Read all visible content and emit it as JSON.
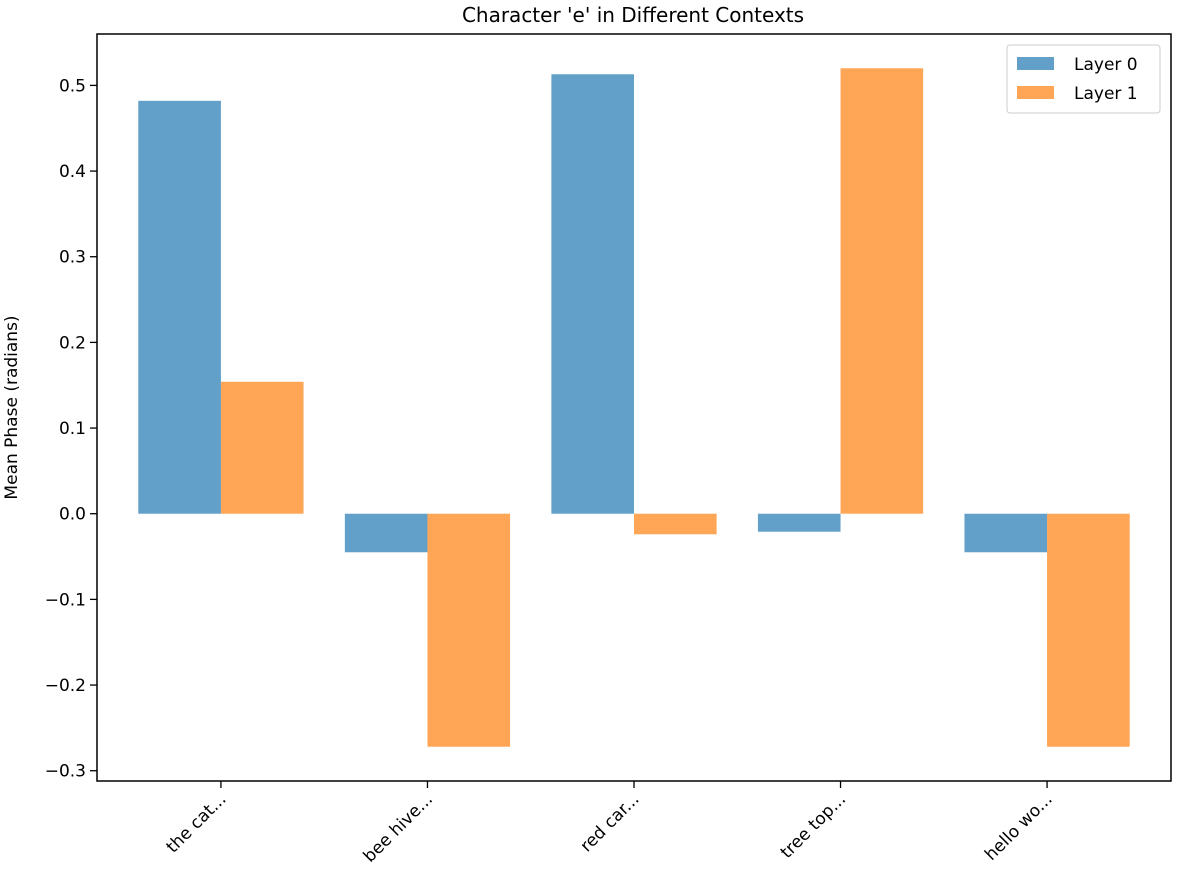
{
  "chart_data": {
    "type": "bar",
    "title": "Character 'e' in Different Contexts",
    "xlabel": "",
    "ylabel": "Mean Phase (radians)",
    "categories": [
      "the cat...",
      "bee hive...",
      "red car...",
      "tree top...",
      "hello wo..."
    ],
    "series": [
      {
        "name": "Layer 0",
        "color": "#1f77b4",
        "values": [
          0.482,
          -0.045,
          0.513,
          -0.021,
          -0.045
        ]
      },
      {
        "name": "Layer 1",
        "color": "#ff7f0e",
        "values": [
          0.154,
          -0.272,
          -0.024,
          0.52,
          -0.272
        ]
      }
    ],
    "ylim": [
      -0.312,
      0.56
    ],
    "yticks": [
      -0.3,
      -0.2,
      -0.1,
      0.0,
      0.1,
      0.2,
      0.3,
      0.4,
      0.5
    ],
    "ytick_labels": [
      "−0.3",
      "−0.2",
      "−0.1",
      "0.0",
      "0.1",
      "0.2",
      "0.3",
      "0.4",
      "0.5"
    ],
    "grid": false,
    "legend": "top-right"
  }
}
